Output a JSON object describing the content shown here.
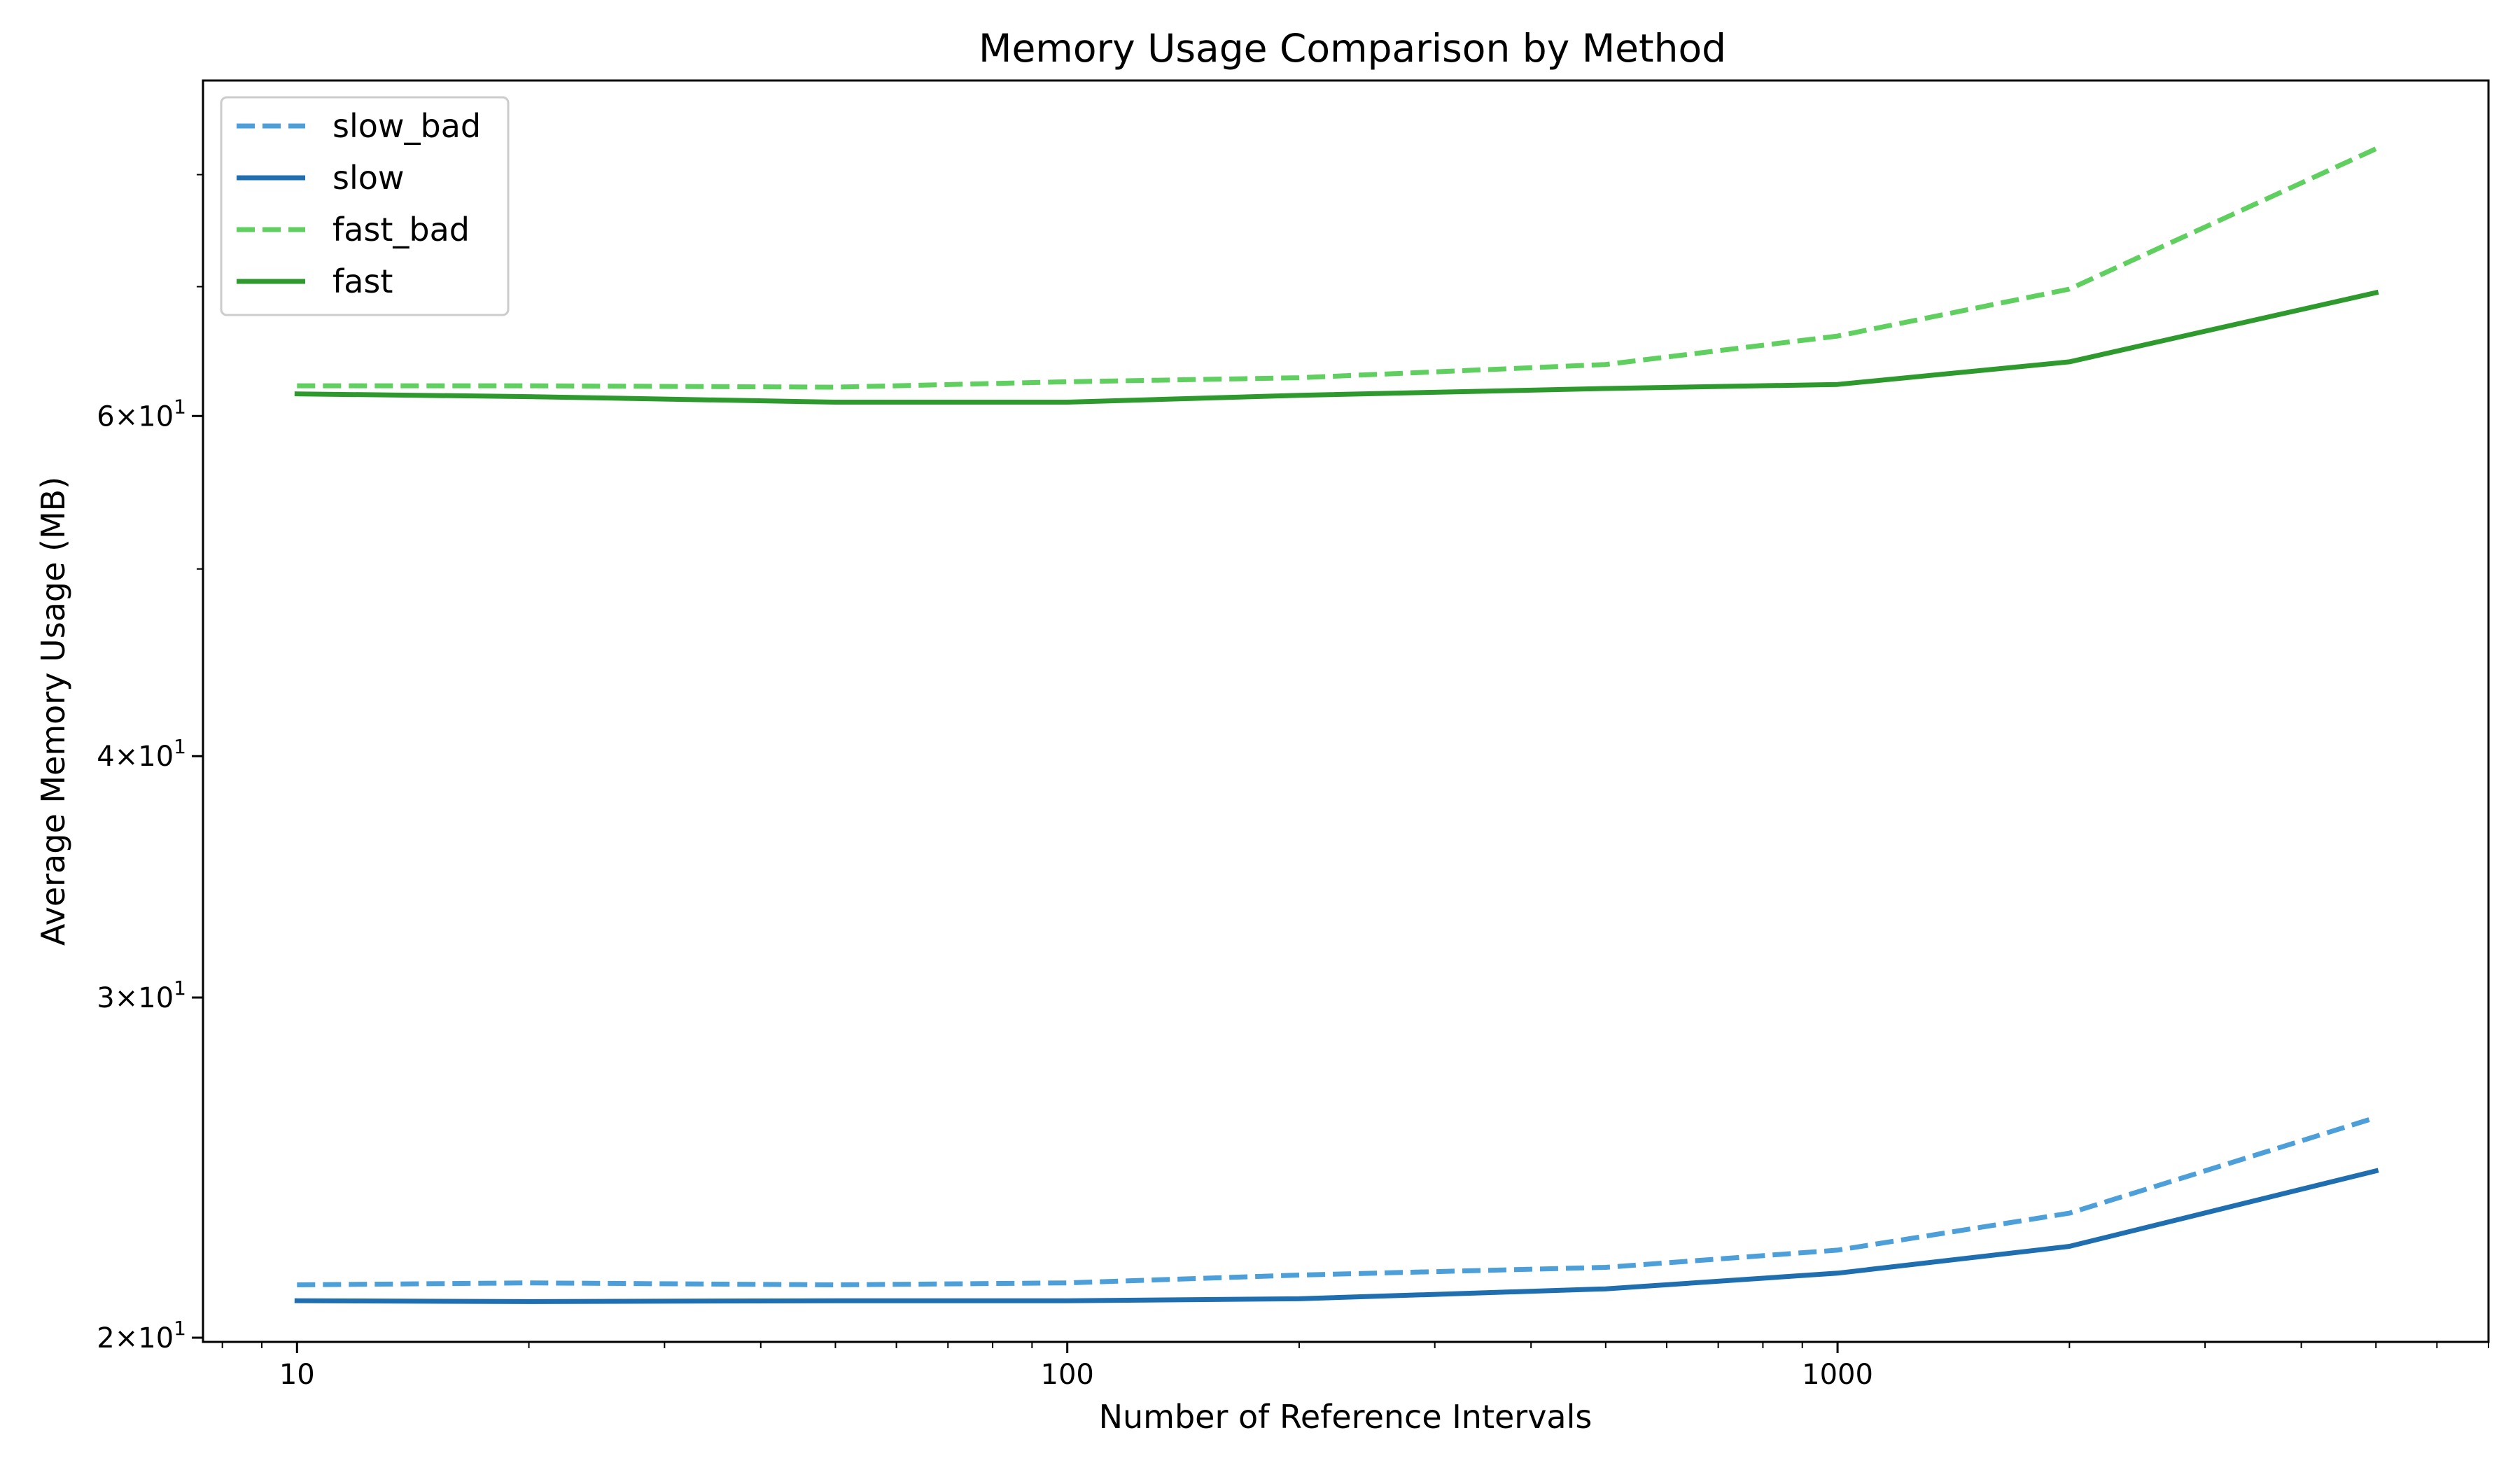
{
  "chart_data": {
    "type": "line",
    "title": "Memory Usage Comparison by Method",
    "xlabel": "Number of Reference Intervals",
    "ylabel": "Average Memory Usage (MB)",
    "x_scale": "log",
    "y_scale": "log",
    "xlim": [
      7.55,
      7000
    ],
    "ylim": [
      19.9,
      89.5
    ],
    "x_ticks": [
      {
        "value": 10,
        "label": "10"
      },
      {
        "value": 100,
        "label": "100"
      },
      {
        "value": 1000,
        "label": "1000"
      }
    ],
    "y_ticks": [
      {
        "value": 20,
        "base": "2",
        "exp": "1"
      },
      {
        "value": 30,
        "base": "3",
        "exp": "1"
      },
      {
        "value": 40,
        "base": "4",
        "exp": "1"
      },
      {
        "value": 60,
        "base": "6",
        "exp": "1"
      }
    ],
    "y_minor_ticks": [
      50,
      70,
      80
    ],
    "grid": false,
    "legend": "top-left",
    "x": [
      10,
      20,
      50,
      100,
      200,
      500,
      1000,
      2000,
      5000
    ],
    "series": [
      {
        "name": "slow_bad",
        "color": "#4c9fd9",
        "style": "dashed",
        "values": [
          21.3,
          21.35,
          21.3,
          21.35,
          21.55,
          21.75,
          22.2,
          23.2,
          26.0
        ]
      },
      {
        "name": "slow",
        "color": "#1f6fb0",
        "style": "solid",
        "values": [
          20.9,
          20.88,
          20.9,
          20.9,
          20.95,
          21.2,
          21.6,
          22.3,
          24.4
        ]
      },
      {
        "name": "fast_bad",
        "color": "#5fcf5f",
        "style": "dashed",
        "values": [
          62.2,
          62.2,
          62.1,
          62.5,
          62.8,
          63.8,
          66.0,
          69.8,
          82.5
        ]
      },
      {
        "name": "fast",
        "color": "#2e9a2e",
        "style": "solid",
        "values": [
          61.6,
          61.4,
          61.0,
          61.0,
          61.5,
          62.0,
          62.3,
          64.0,
          69.5
        ]
      }
    ]
  }
}
